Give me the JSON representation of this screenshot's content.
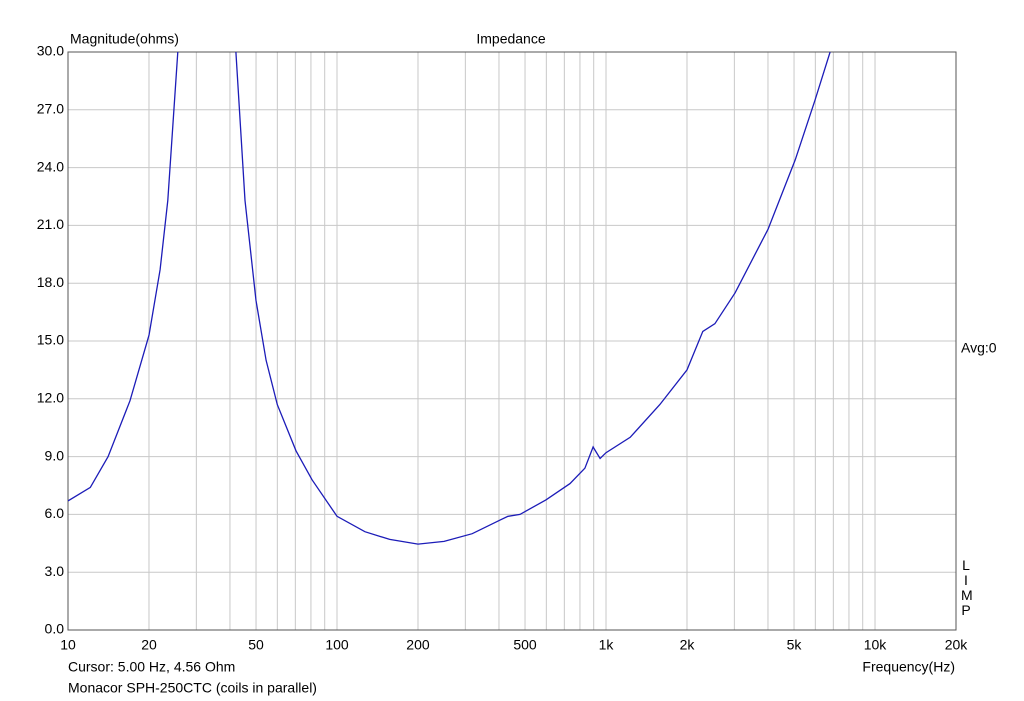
{
  "chart_data": {
    "type": "line",
    "title": "Impedance",
    "y_label": "Magnitude(ohms)",
    "x_label": "Frequency(Hz)",
    "cursor_text": "Cursor: 5.00 Hz, 4.56 Ohm",
    "caption": "Monacor SPH-250CTC (coils in parallel)",
    "avg_label": "Avg:0",
    "side_label": "LIMP",
    "xscale": "log",
    "grid": true,
    "xlim": [
      10,
      20000
    ],
    "ylim": [
      0,
      30
    ],
    "xticks": [
      10,
      20,
      50,
      100,
      200,
      500,
      {
        "value": 1000,
        "label": "1k"
      },
      {
        "value": 2000,
        "label": "2k"
      },
      {
        "value": 5000,
        "label": "5k"
      },
      {
        "value": 10000,
        "label": "10k"
      },
      {
        "value": 20000,
        "label": "20k"
      }
    ],
    "x_minor_ticks": [
      30,
      40,
      60,
      70,
      80,
      90,
      300,
      400,
      600,
      700,
      800,
      900,
      3000,
      4000,
      6000,
      7000,
      8000,
      9000
    ],
    "yticks": [
      {
        "value": 0,
        "label": "0.0"
      },
      {
        "value": 3,
        "label": "3.0"
      },
      {
        "value": 6,
        "label": "6.0"
      },
      {
        "value": 9,
        "label": "9.0"
      },
      {
        "value": 12,
        "label": "12.0"
      },
      {
        "value": 15,
        "label": "15.0"
      },
      {
        "value": 18,
        "label": "18.0"
      },
      {
        "value": 21,
        "label": "21.0"
      },
      {
        "value": 24,
        "label": "24.0"
      },
      {
        "value": 27,
        "label": "27.0"
      },
      {
        "value": 30,
        "label": "30.0"
      }
    ],
    "x": [
      10,
      12.1,
      14.1,
      17.0,
      20,
      22.0,
      23.5,
      25.6,
      null,
      42.1,
      45.5,
      50,
      54.5,
      60,
      70.4,
      80.7,
      100,
      127,
      157,
      200,
      250,
      318,
      403,
      432,
      479,
      598,
      735,
      835,
      895,
      951,
      1000,
      1230,
      1585,
      2000,
      2290,
      2540,
      3020,
      4000,
      5050,
      5980,
      6810
    ],
    "series": [
      {
        "color": "#1c1cb8",
        "values": [
          6.7,
          7.4,
          9.0,
          11.9,
          15.3,
          18.7,
          22.3,
          30,
          null,
          30,
          22.3,
          17.1,
          14.0,
          11.7,
          9.3,
          7.8,
          5.9,
          5.1,
          4.7,
          4.46,
          4.6,
          5.0,
          5.7,
          5.9,
          6.0,
          6.75,
          7.6,
          8.4,
          9.5,
          8.9,
          9.2,
          10.0,
          11.7,
          13.5,
          15.5,
          15.9,
          17.5,
          20.8,
          24.4,
          27.5,
          30
        ]
      }
    ]
  }
}
